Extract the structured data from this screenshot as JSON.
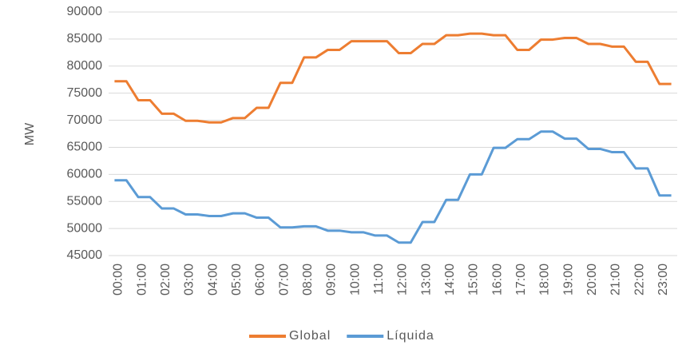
{
  "chart_data": {
    "type": "line",
    "y_label": "MW",
    "categories": [
      "00:00",
      null,
      "01:00",
      null,
      "02:00",
      null,
      "03:00",
      null,
      "04:00",
      null,
      "05:00",
      null,
      "06:00",
      null,
      "07:00",
      null,
      "08:00",
      null,
      "09:00",
      null,
      "10:00",
      null,
      "11:00",
      null,
      "12:00",
      null,
      "13:00",
      null,
      "14:00",
      null,
      "15:00",
      null,
      "16:00",
      null,
      "17:00",
      null,
      "18:00",
      null,
      "19:00",
      null,
      "20:00",
      null,
      "21:00",
      null,
      "22:00",
      null,
      "23:00",
      null
    ],
    "series": [
      {
        "name": "Global",
        "color": "#ed7d31",
        "values": [
          77200,
          77200,
          73700,
          73700,
          71200,
          71200,
          69900,
          69900,
          69600,
          69600,
          70400,
          70400,
          72300,
          72300,
          76900,
          76900,
          81600,
          81600,
          83000,
          83000,
          84600,
          84600,
          84600,
          84600,
          82400,
          82400,
          84100,
          84100,
          85700,
          85700,
          86000,
          86000,
          85700,
          85700,
          83000,
          83000,
          84900,
          84900,
          85200,
          85200,
          84100,
          84100,
          83600,
          83600,
          80800,
          80800,
          76700,
          76700
        ]
      },
      {
        "name": "Líquida",
        "color": "#5b9bd5",
        "values": [
          58900,
          58900,
          55800,
          55800,
          53700,
          53700,
          52600,
          52600,
          52300,
          52300,
          52800,
          52800,
          52000,
          52000,
          50200,
          50200,
          50400,
          50400,
          49600,
          49600,
          49300,
          49300,
          48700,
          48700,
          47400,
          47400,
          51200,
          51200,
          55300,
          55300,
          60000,
          60000,
          64900,
          64900,
          66500,
          66500,
          67900,
          67900,
          66600,
          66600,
          64700,
          64700,
          64100,
          64100,
          61100,
          61100,
          56100,
          56100
        ]
      }
    ],
    "ylim": [
      45000,
      90000
    ],
    "yticks": [
      45000,
      50000,
      55000,
      60000,
      65000,
      70000,
      75000,
      80000,
      85000,
      90000
    ],
    "grid": true,
    "legend": "bottom"
  }
}
